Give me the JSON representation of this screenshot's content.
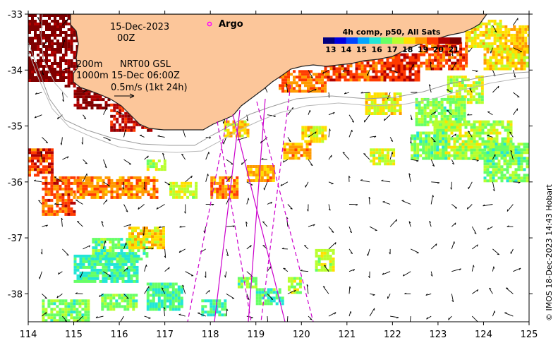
{
  "map": {
    "date": "15-Dec-2023",
    "hour": "00Z",
    "isobath_200": "200m",
    "isobath_1000": "1000m",
    "current_product": "NRT00 GSL",
    "current_time": "15-Dec 06:00Z",
    "vector_scale": "0.5m/s (1kt 24h)",
    "argo_legend": "Argo",
    "colorbar": {
      "title": "4h comp, p50, All Sats",
      "ticks": [
        "13",
        "14",
        "15",
        "16",
        "17",
        "18",
        "19",
        "20",
        "21"
      ],
      "range": [
        12.5,
        21.5
      ],
      "colors": [
        "#00007f",
        "#0000e0",
        "#0044ff",
        "#00a6ff",
        "#22e6d6",
        "#66ff66",
        "#b8ff2e",
        "#ffe000",
        "#ff9a00",
        "#ff3a00",
        "#b00000",
        "#7f0000"
      ]
    },
    "credit": "© IMOS 18-Dec-2023 14:43 Hobart",
    "x_axis": {
      "range": [
        114,
        125
      ],
      "ticks": [
        "114",
        "115",
        "116",
        "117",
        "118",
        "119",
        "120",
        "121",
        "122",
        "123",
        "124",
        "125"
      ]
    },
    "y_axis": {
      "range": [
        -38.5,
        -33
      ],
      "ticks": [
        "-33",
        "-34",
        "-35",
        "-36",
        "-37",
        "-38"
      ]
    },
    "colors": {
      "land": "#fcc69a",
      "coast": "#1f1f1f",
      "isobath": "#9a9a9a",
      "track": "#cc00cc",
      "argo": "#ff00ff"
    },
    "sst_patches": [
      {
        "lon": [
          114.0,
          114.8
        ],
        "lat": [
          -33.0,
          -34.2
        ],
        "value": 21.3
      },
      {
        "lon": [
          114.8,
          115.3
        ],
        "lat": [
          -33.0,
          -34.3
        ],
        "value": 20.8
      },
      {
        "lon": [
          115.0,
          115.8
        ],
        "lat": [
          -34.3,
          -34.7
        ],
        "value": 21.0
      },
      {
        "lon": [
          115.8,
          116.8
        ],
        "lat": [
          -34.6,
          -35.1
        ],
        "value": 20.3
      },
      {
        "lon": [
          114.0,
          114.5
        ],
        "lat": [
          -35.4,
          -35.9
        ],
        "value": 19.7
      },
      {
        "lon": [
          114.3,
          115.0
        ],
        "lat": [
          -35.9,
          -36.6
        ],
        "value": 19.4
      },
      {
        "lon": [
          116.6,
          117.0
        ],
        "lat": [
          -35.6,
          -35.8
        ],
        "value": 17.3
      },
      {
        "lon": [
          115.0,
          116.8
        ],
        "lat": [
          -35.9,
          -36.3
        ],
        "value": 19.0
      },
      {
        "lon": [
          118.0,
          118.6
        ],
        "lat": [
          -35.9,
          -36.3
        ],
        "value": 19.0
      },
      {
        "lon": [
          118.8,
          119.4
        ],
        "lat": [
          -35.7,
          -36.0
        ],
        "value": 18.6
      },
      {
        "lon": [
          119.6,
          120.2
        ],
        "lat": [
          -35.3,
          -35.6
        ],
        "value": 18.8
      },
      {
        "lon": [
          118.3,
          118.8
        ],
        "lat": [
          -34.9,
          -35.2
        ],
        "value": 18.3
      },
      {
        "lon": [
          119.5,
          120.5
        ],
        "lat": [
          -34.0,
          -34.4
        ],
        "value": 19.2
      },
      {
        "lon": [
          120.5,
          121.8
        ],
        "lat": [
          -33.8,
          -34.2
        ],
        "value": 19.5
      },
      {
        "lon": [
          121.8,
          122.6
        ],
        "lat": [
          -33.7,
          -34.2
        ],
        "value": 19.9
      },
      {
        "lon": [
          122.6,
          123.6
        ],
        "lat": [
          -33.5,
          -34.0
        ],
        "value": 19.6
      },
      {
        "lon": [
          123.6,
          124.4
        ],
        "lat": [
          -33.1,
          -33.6
        ],
        "value": 18.0
      },
      {
        "lon": [
          124.4,
          125.0
        ],
        "lat": [
          -33.2,
          -33.7
        ],
        "value": 18.5
      },
      {
        "lon": [
          124.0,
          125.0
        ],
        "lat": [
          -33.6,
          -34.0
        ],
        "value": 18.1
      },
      {
        "lon": [
          123.2,
          124.0
        ],
        "lat": [
          -34.1,
          -34.6
        ],
        "value": 17.4
      },
      {
        "lon": [
          122.5,
          123.6
        ],
        "lat": [
          -34.5,
          -35.0
        ],
        "value": 16.9
      },
      {
        "lon": [
          122.9,
          124.6
        ],
        "lat": [
          -34.9,
          -35.6
        ],
        "value": 17.3
      },
      {
        "lon": [
          124.0,
          125.0
        ],
        "lat": [
          -35.3,
          -36.0
        ],
        "value": 16.8
      },
      {
        "lon": [
          122.4,
          123.2
        ],
        "lat": [
          -35.1,
          -35.6
        ],
        "value": 16.6
      },
      {
        "lon": [
          121.4,
          122.2
        ],
        "lat": [
          -34.4,
          -34.8
        ],
        "value": 17.9
      },
      {
        "lon": [
          121.5,
          122.0
        ],
        "lat": [
          -35.4,
          -35.7
        ],
        "value": 17.6
      },
      {
        "lon": [
          120.0,
          120.5
        ],
        "lat": [
          -35.0,
          -35.3
        ],
        "value": 17.9
      },
      {
        "lon": [
          117.1,
          117.7
        ],
        "lat": [
          -36.0,
          -36.3
        ],
        "value": 17.6
      },
      {
        "lon": [
          115.4,
          116.6
        ],
        "lat": [
          -37.0,
          -37.4
        ],
        "value": 16.6
      },
      {
        "lon": [
          116.2,
          117.0
        ],
        "lat": [
          -36.8,
          -37.2
        ],
        "value": 18.2
      },
      {
        "lon": [
          115.0,
          116.4
        ],
        "lat": [
          -37.3,
          -37.8
        ],
        "value": 16.2
      },
      {
        "lon": [
          116.6,
          117.4
        ],
        "lat": [
          -37.8,
          -38.3
        ],
        "value": 16.3
      },
      {
        "lon": [
          115.6,
          116.4
        ],
        "lat": [
          -38.0,
          -38.3
        ],
        "value": 16.7
      },
      {
        "lon": [
          117.8,
          118.3
        ],
        "lat": [
          -38.1,
          -38.4
        ],
        "value": 16.3
      },
      {
        "lon": [
          118.6,
          119.0
        ],
        "lat": [
          -37.7,
          -37.9
        ],
        "value": 16.9
      },
      {
        "lon": [
          119.0,
          119.6
        ],
        "lat": [
          -37.9,
          -38.2
        ],
        "value": 16.4
      },
      {
        "lon": [
          119.7,
          120.0
        ],
        "lat": [
          -37.7,
          -38.0
        ],
        "value": 17.3
      },
      {
        "lon": [
          114.3,
          115.3
        ],
        "lat": [
          -38.1,
          -38.5
        ],
        "value": 16.9
      },
      {
        "lon": [
          120.3,
          120.7
        ],
        "lat": [
          -37.2,
          -37.6
        ],
        "value": 17.5
      }
    ]
  }
}
